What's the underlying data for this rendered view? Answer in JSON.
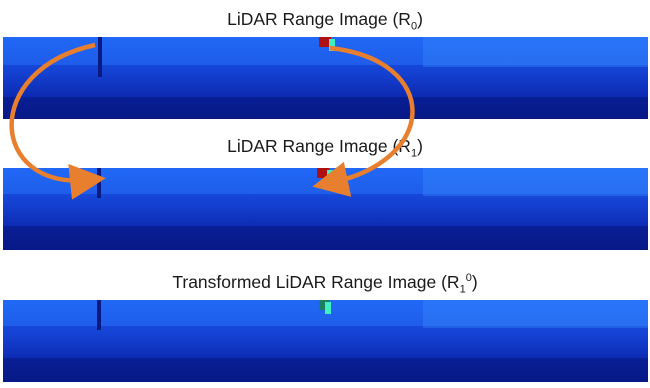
{
  "panels": [
    {
      "title_main": "LiDAR Range Image (R",
      "title_sub": "0",
      "title_sup": "",
      "title_end": ")"
    },
    {
      "title_main": "LiDAR Range Image (R",
      "title_sub": "1",
      "title_sup": "",
      "title_end": ")"
    },
    {
      "title_main": "Transformed LiDAR Range Image (R",
      "title_sub": "1",
      "title_sup": "0",
      "title_end": ")"
    }
  ],
  "colors": {
    "arrow": "#e87f2e",
    "range_far": "#0a1f9e",
    "range_mid": "#1650e0",
    "range_near": "#3aa0ff",
    "hot_red": "#b01010",
    "hot_cyan": "#40f0c0"
  }
}
